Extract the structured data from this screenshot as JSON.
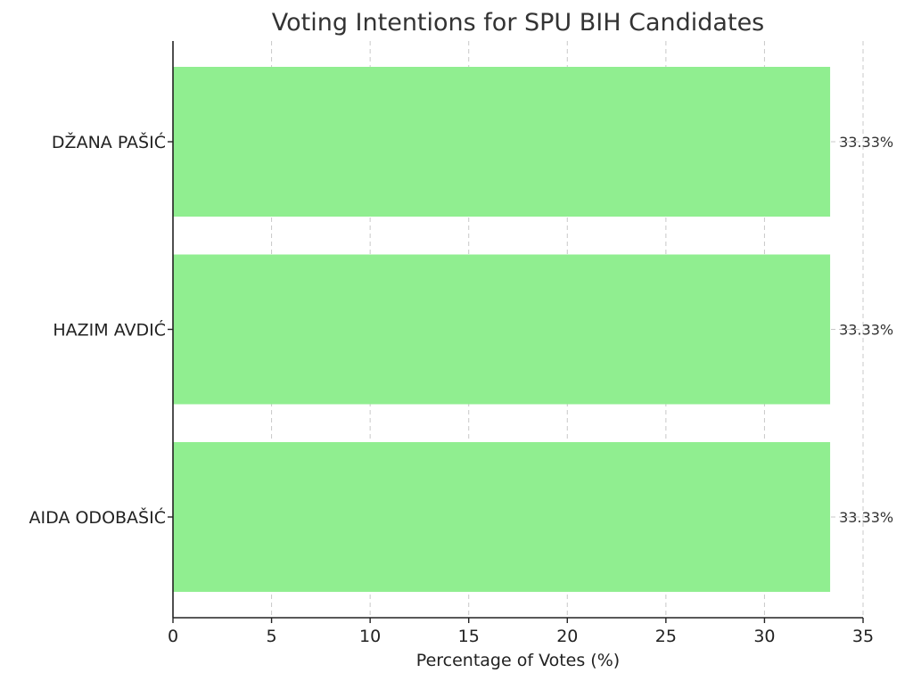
{
  "chart_data": {
    "type": "bar",
    "orientation": "horizontal",
    "title": "Voting Intentions for SPU BIH Candidates",
    "xlabel": "Percentage of Votes (%)",
    "ylabel": "",
    "categories": [
      "AIDA ODOBAŠIĆ",
      "HAZIM AVDIĆ",
      "DŽANA PAŠIĆ"
    ],
    "values": [
      33.33,
      33.33,
      33.33
    ],
    "data_labels": [
      "33.33%",
      "33.33%",
      "33.33%"
    ],
    "xlim": [
      0,
      35
    ],
    "xticks": [
      0,
      5,
      10,
      15,
      20,
      25,
      30,
      35
    ],
    "xtick_labels": [
      "0",
      "5",
      "10",
      "15",
      "20",
      "25",
      "30",
      "35"
    ],
    "grid": true,
    "bar_color": "#90ee90"
  }
}
